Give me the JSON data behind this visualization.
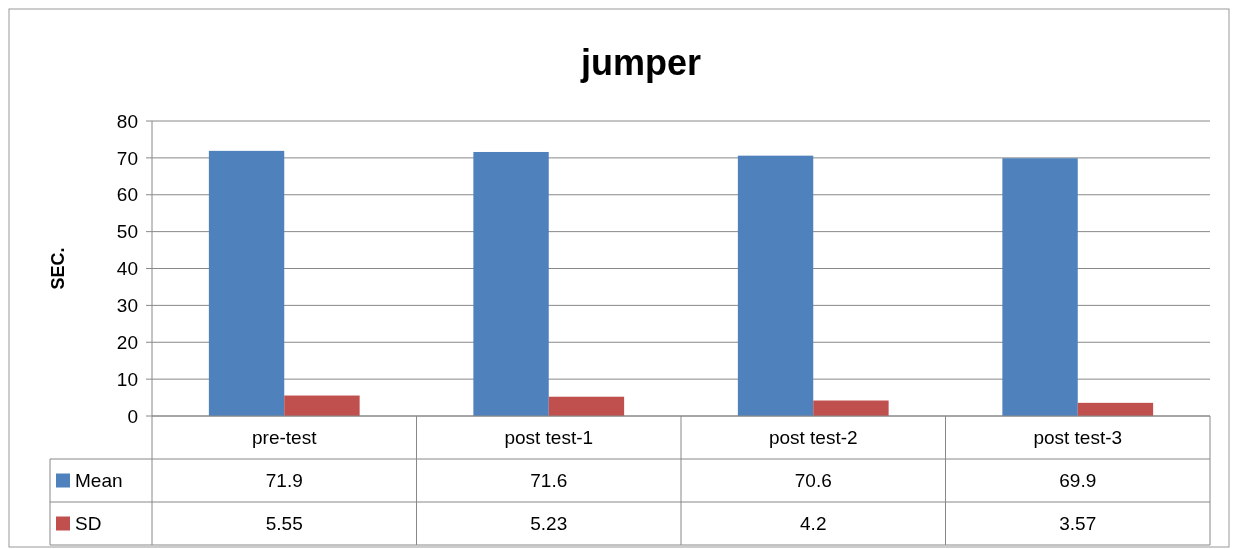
{
  "chart_data": {
    "type": "bar",
    "title": "jumper",
    "ylabel": "SEC.",
    "categories": [
      "pre-test",
      "post test-1",
      "post test-2",
      "post test-3"
    ],
    "series": [
      {
        "name": "Mean",
        "color": "#4f81bd",
        "values": [
          71.9,
          71.6,
          70.6,
          69.9
        ]
      },
      {
        "name": "SD",
        "color": "#c0504d",
        "values": [
          5.55,
          5.23,
          4.2,
          3.57
        ]
      }
    ],
    "ylim": [
      0,
      80
    ],
    "yticks": [
      0,
      10,
      20,
      30,
      40,
      50,
      60,
      70,
      80
    ],
    "grid": "y",
    "legend": "bottom",
    "data_labels": true
  }
}
